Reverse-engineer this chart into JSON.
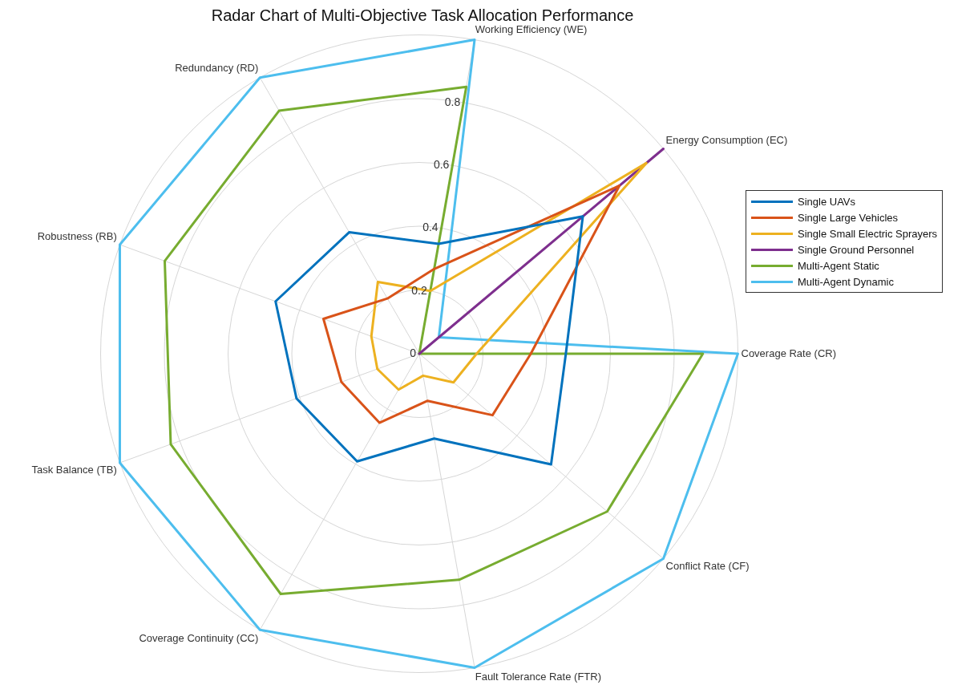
{
  "chart_data": {
    "type": "radar",
    "title": "Radar Chart of Multi-Objective Task Allocation Performance",
    "categories": [
      "Working Efficiency (WE)",
      "Energy Consumption (EC)",
      "Coverage Rate (CR)",
      "Conflict Rate (CF)",
      "Fault Tolerance Rate (FTR)",
      "Coverage Continuity (CC)",
      "Task Balance (TB)",
      "Robustness (RB)",
      "Redundancy (RD)"
    ],
    "series": [
      {
        "name": "Single UAVs",
        "color": "#0072bd",
        "values": [
          0.35,
          0.67,
          0.46,
          0.54,
          0.27,
          0.39,
          0.41,
          0.48,
          0.44
        ]
      },
      {
        "name": "Single Large Vehicles",
        "color": "#d95319",
        "values": [
          0.27,
          0.82,
          0.35,
          0.3,
          0.15,
          0.25,
          0.26,
          0.32,
          0.2
        ]
      },
      {
        "name": "Single Small Electric Sprayers",
        "color": "#edb120",
        "values": [
          0.2,
          0.93,
          0.18,
          0.14,
          0.07,
          0.13,
          0.14,
          0.16,
          0.26
        ]
      },
      {
        "name": "Single Ground Personnel",
        "color": "#7e2f8e",
        "values": [
          0,
          1,
          0,
          0,
          0,
          0,
          0,
          0,
          0
        ]
      },
      {
        "name": "Multi-Agent Static",
        "color": "#77ac30",
        "values": [
          0.85,
          0,
          0.89,
          0.77,
          0.72,
          0.87,
          0.83,
          0.85,
          0.88
        ]
      },
      {
        "name": "Multi-Agent Dynamic",
        "color": "#4dbeee",
        "values": [
          1,
          0.08,
          1,
          1,
          1,
          1,
          1,
          1,
          1
        ]
      }
    ],
    "ylim": [
      0,
      1
    ],
    "yticks": [
      0,
      0.2,
      0.4,
      0.6,
      0.8
    ],
    "grid": true,
    "legend": "right",
    "marker": "none"
  }
}
